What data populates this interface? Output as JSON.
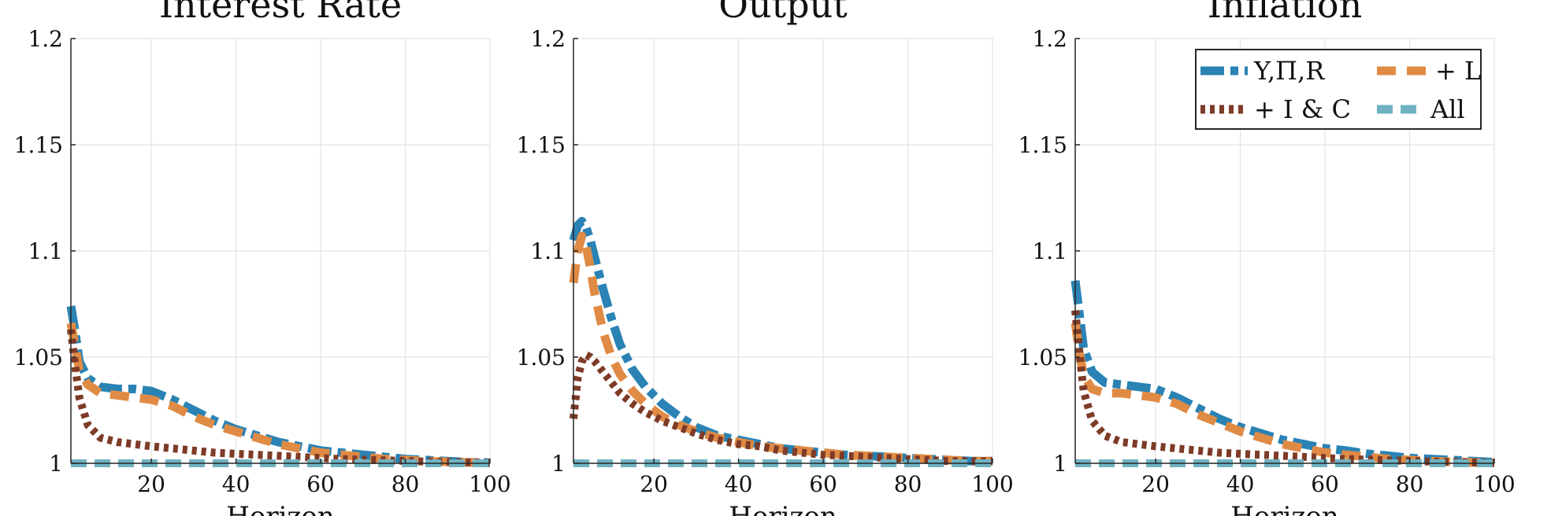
{
  "chart_data": [
    {
      "type": "line",
      "title": "Interest Rate",
      "xlabel": "Horizon",
      "ylabel": "",
      "xlim": [
        1,
        100
      ],
      "ylim": [
        1,
        1.2
      ],
      "xticks": [
        20,
        40,
        60,
        80,
        100
      ],
      "yticks": [
        1,
        1.05,
        1.1,
        1.15,
        1.2
      ],
      "ytick_labels": [
        "1",
        "1.05",
        "1.1",
        "1.15",
        "1.2"
      ],
      "grid": true,
      "legend": null,
      "x": [
        1,
        2,
        3,
        5,
        8,
        12,
        16,
        20,
        25,
        30,
        35,
        40,
        45,
        50,
        55,
        60,
        65,
        70,
        75,
        80,
        85,
        90,
        95,
        100
      ],
      "series": [
        {
          "name": "Y,Π,R",
          "values": [
            1.074,
            1.062,
            1.048,
            1.04,
            1.036,
            1.035,
            1.035,
            1.034,
            1.03,
            1.025,
            1.02,
            1.016,
            1.013,
            1.01,
            1.008,
            1.006,
            1.005,
            1.004,
            1.003,
            1.002,
            1.0015,
            1.001,
            1.0005,
            1.0003
          ]
        },
        {
          "name": "+ L",
          "values": [
            1.066,
            1.055,
            1.044,
            1.037,
            1.033,
            1.032,
            1.031,
            1.03,
            1.027,
            1.022,
            1.018,
            1.015,
            1.012,
            1.009,
            1.007,
            1.005,
            1.004,
            1.003,
            1.002,
            1.0015,
            1.001,
            1.0007,
            1.0004,
            1.0002
          ]
        },
        {
          "name": "+ I & C",
          "values": [
            1.063,
            1.046,
            1.031,
            1.018,
            1.012,
            1.01,
            1.009,
            1.008,
            1.007,
            1.006,
            1.005,
            1.0045,
            1.004,
            1.0035,
            1.003,
            1.0025,
            1.002,
            1.0017,
            1.0014,
            1.0011,
            1.0008,
            1.0006,
            1.0004,
            1.0002
          ]
        },
        {
          "name": "All",
          "values": [
            1,
            1,
            1,
            1,
            1,
            1,
            1,
            1,
            1,
            1,
            1,
            1,
            1,
            1,
            1,
            1,
            1,
            1,
            1,
            1,
            1,
            1,
            1,
            1
          ]
        }
      ]
    },
    {
      "type": "line",
      "title": "Output",
      "xlabel": "Horizon",
      "ylabel": "",
      "xlim": [
        1,
        100
      ],
      "ylim": [
        1,
        1.2
      ],
      "xticks": [
        20,
        40,
        60,
        80,
        100
      ],
      "yticks": [
        1,
        1.05,
        1.1,
        1.15,
        1.2
      ],
      "ytick_labels": [
        "1",
        "1.05",
        "1.1",
        "1.15",
        "1.2"
      ],
      "grid": true,
      "legend": null,
      "x": [
        1,
        2,
        3,
        4,
        5,
        6,
        8,
        10,
        12,
        15,
        18,
        22,
        26,
        30,
        35,
        40,
        45,
        50,
        55,
        60,
        65,
        70,
        75,
        80,
        85,
        90,
        95,
        100
      ],
      "series": [
        {
          "name": "Y,Π,R",
          "values": [
            1.105,
            1.112,
            1.114,
            1.111,
            1.105,
            1.097,
            1.082,
            1.068,
            1.056,
            1.044,
            1.036,
            1.028,
            1.022,
            1.017,
            1.013,
            1.011,
            1.009,
            1.007,
            1.006,
            1.005,
            1.004,
            1.0035,
            1.003,
            1.0025,
            1.002,
            1.0015,
            1.001,
            1.001
          ]
        },
        {
          "name": "+ L",
          "values": [
            1.085,
            1.1,
            1.107,
            1.102,
            1.092,
            1.08,
            1.062,
            1.05,
            1.042,
            1.034,
            1.028,
            1.022,
            1.018,
            1.015,
            1.012,
            1.01,
            1.008,
            1.007,
            1.006,
            1.005,
            1.004,
            1.0035,
            1.003,
            1.0025,
            1.002,
            1.0015,
            1.001,
            1.001
          ]
        },
        {
          "name": "+ I & C",
          "values": [
            1.021,
            1.04,
            1.048,
            1.051,
            1.05,
            1.048,
            1.043,
            1.038,
            1.033,
            1.028,
            1.024,
            1.02,
            1.017,
            1.014,
            1.011,
            1.009,
            1.008,
            1.006,
            1.005,
            1.004,
            1.0035,
            1.003,
            1.0025,
            1.002,
            1.0015,
            1.001,
            1.001,
            1.001
          ]
        },
        {
          "name": "All",
          "values": [
            1,
            1,
            1,
            1,
            1,
            1,
            1,
            1,
            1,
            1,
            1,
            1,
            1,
            1,
            1,
            1,
            1,
            1,
            1,
            1,
            1,
            1,
            1,
            1,
            1,
            1,
            1,
            1
          ]
        }
      ]
    },
    {
      "type": "line",
      "title": "Inflation",
      "xlabel": "Horizon",
      "ylabel": "",
      "xlim": [
        1,
        100
      ],
      "ylim": [
        1,
        1.2
      ],
      "xticks": [
        20,
        40,
        60,
        80,
        100
      ],
      "yticks": [
        1,
        1.05,
        1.1,
        1.15,
        1.2
      ],
      "ytick_labels": [
        "1",
        "1.05",
        "1.1",
        "1.15",
        "1.2"
      ],
      "grid": true,
      "legend": "top-right",
      "x": [
        1,
        2,
        3,
        5,
        8,
        12,
        16,
        20,
        25,
        30,
        35,
        40,
        45,
        50,
        55,
        60,
        65,
        70,
        75,
        80,
        85,
        90,
        95,
        100
      ],
      "series": [
        {
          "name": "Y,Π,R",
          "values": [
            1.086,
            1.07,
            1.054,
            1.043,
            1.038,
            1.037,
            1.036,
            1.035,
            1.031,
            1.026,
            1.021,
            1.017,
            1.014,
            1.011,
            1.009,
            1.007,
            1.006,
            1.0045,
            1.0035,
            1.0025,
            1.002,
            1.0015,
            1.001,
            1.0005
          ]
        },
        {
          "name": "+ L",
          "values": [
            1.066,
            1.052,
            1.041,
            1.035,
            1.033,
            1.033,
            1.032,
            1.031,
            1.028,
            1.023,
            1.019,
            1.015,
            1.012,
            1.009,
            1.007,
            1.005,
            1.004,
            1.003,
            1.002,
            1.0015,
            1.001,
            1.0007,
            1.0004,
            1.0002
          ]
        },
        {
          "name": "+ I & C",
          "values": [
            1.072,
            1.052,
            1.034,
            1.02,
            1.013,
            1.01,
            1.009,
            1.008,
            1.007,
            1.006,
            1.005,
            1.0045,
            1.004,
            1.0035,
            1.003,
            1.0025,
            1.002,
            1.0017,
            1.0014,
            1.0011,
            1.0008,
            1.0006,
            1.0004,
            1.0002
          ]
        },
        {
          "name": "All",
          "values": [
            1,
            1,
            1,
            1,
            1,
            1,
            1,
            1,
            1,
            1,
            1,
            1,
            1,
            1,
            1,
            1,
            1,
            1,
            1,
            1,
            1,
            1,
            1,
            1
          ]
        }
      ]
    }
  ],
  "legend": {
    "entries": [
      "Y,Π,R",
      "+ L",
      "+ I & C",
      "All"
    ]
  },
  "colors": {
    "Y,Π,R": "#2a83b4",
    "+ L": "#e08b45",
    "+ I & C": "#7e3b27",
    "All": "#6fb2c2",
    "grid": "#e3e3e3",
    "axis": "#262626"
  }
}
